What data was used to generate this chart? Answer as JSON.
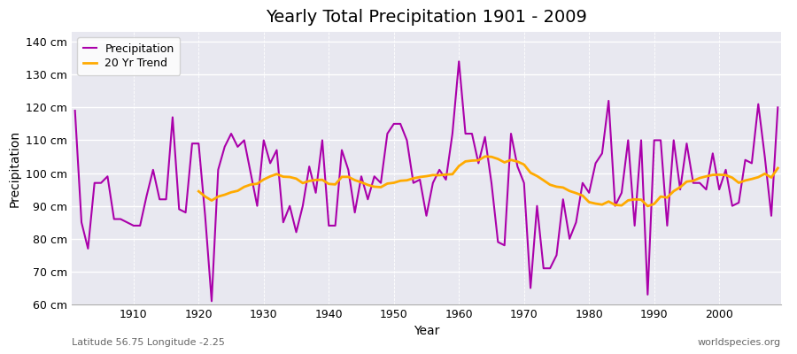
{
  "title": "Yearly Total Precipitation 1901 - 2009",
  "xlabel": "Year",
  "ylabel": "Precipitation",
  "subtitle_left": "Latitude 56.75 Longitude -2.25",
  "subtitle_right": "worldspecies.org",
  "precip_color": "#aa00aa",
  "trend_color": "#ffaa00",
  "bg_color": "#e8e8f0",
  "fig_bg": "#ffffff",
  "ylim": [
    60,
    143
  ],
  "yticks": [
    60,
    70,
    80,
    90,
    100,
    110,
    120,
    130,
    140
  ],
  "xlim": [
    1900.5,
    2009.5
  ],
  "xticks": [
    1910,
    1920,
    1930,
    1940,
    1950,
    1960,
    1970,
    1980,
    1990,
    2000
  ],
  "years": [
    1901,
    1902,
    1903,
    1904,
    1905,
    1906,
    1907,
    1908,
    1909,
    1910,
    1911,
    1912,
    1913,
    1914,
    1915,
    1916,
    1917,
    1918,
    1919,
    1920,
    1921,
    1922,
    1923,
    1924,
    1925,
    1926,
    1927,
    1928,
    1929,
    1930,
    1931,
    1932,
    1933,
    1934,
    1935,
    1936,
    1937,
    1938,
    1939,
    1940,
    1941,
    1942,
    1943,
    1944,
    1945,
    1946,
    1947,
    1948,
    1949,
    1950,
    1951,
    1952,
    1953,
    1954,
    1955,
    1956,
    1957,
    1958,
    1959,
    1960,
    1961,
    1962,
    1963,
    1964,
    1965,
    1966,
    1967,
    1968,
    1969,
    1970,
    1971,
    1972,
    1973,
    1974,
    1975,
    1976,
    1977,
    1978,
    1979,
    1980,
    1981,
    1982,
    1983,
    1984,
    1985,
    1986,
    1987,
    1988,
    1989,
    1990,
    1991,
    1992,
    1993,
    1994,
    1995,
    1996,
    1997,
    1998,
    1999,
    2000,
    2001,
    2002,
    2003,
    2004,
    2005,
    2006,
    2007,
    2008,
    2009
  ],
  "precipitation": [
    119,
    85,
    77,
    97,
    97,
    99,
    86,
    86,
    85,
    84,
    84,
    93,
    101,
    92,
    92,
    117,
    89,
    88,
    109,
    109,
    87,
    61,
    101,
    108,
    112,
    108,
    110,
    100,
    90,
    110,
    103,
    107,
    85,
    90,
    82,
    90,
    102,
    94,
    110,
    84,
    84,
    107,
    101,
    88,
    99,
    92,
    99,
    97,
    112,
    115,
    115,
    110,
    97,
    98,
    87,
    97,
    101,
    98,
    112,
    134,
    112,
    112,
    103,
    111,
    97,
    79,
    78,
    112,
    102,
    97,
    65,
    90,
    71,
    71,
    75,
    92,
    80,
    85,
    97,
    94,
    103,
    106,
    122,
    90,
    94,
    110,
    84,
    110,
    63,
    110,
    110,
    84,
    110,
    95,
    109,
    97,
    97,
    95,
    106,
    95,
    101,
    90,
    91,
    104,
    103,
    121,
    105,
    87,
    120
  ],
  "legend_labels": [
    "Precipitation",
    "20 Yr Trend"
  ],
  "legend_colors": [
    "#aa00aa",
    "#ffaa00"
  ],
  "precip_lw": 1.5,
  "trend_lw": 2.0,
  "title_fontsize": 14,
  "tick_fontsize": 9,
  "label_fontsize": 10,
  "footnote_fontsize": 8
}
